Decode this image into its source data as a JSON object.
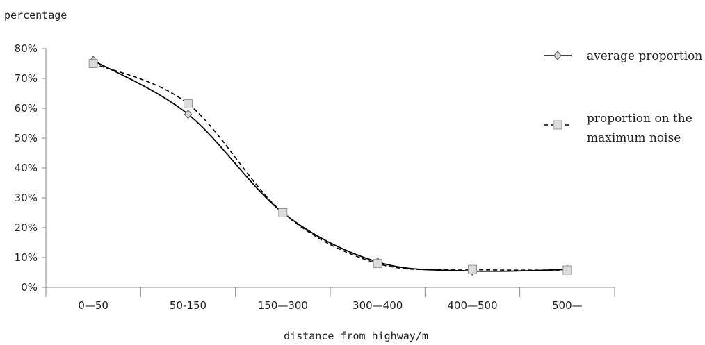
{
  "chart_data": {
    "type": "line",
    "title": "",
    "ylabel": "percentage",
    "xlabel": "distance from highway/m",
    "categories": [
      "0—50",
      "50-150",
      "150—300",
      "300—400",
      "400—500",
      "500—"
    ],
    "y_ticks": [
      "0%",
      "10%",
      "20%",
      "30%",
      "40%",
      "50%",
      "60%",
      "70%",
      "80%"
    ],
    "ylim": [
      0,
      0.8
    ],
    "y_format": "percent",
    "grid": false,
    "legend_position": "right",
    "series": [
      {
        "name": "average proportion",
        "values": [
          0.76,
          0.58,
          0.25,
          0.085,
          0.055,
          0.06
        ],
        "line_style": "solid",
        "marker": "diamond",
        "color": "#000000"
      },
      {
        "name_lines": [
          "proportion on the",
          "maximum noise"
        ],
        "values": [
          0.75,
          0.615,
          0.25,
          0.08,
          0.06,
          0.058
        ],
        "line_style": "dashed",
        "marker": "square",
        "color": "#000000"
      }
    ]
  }
}
